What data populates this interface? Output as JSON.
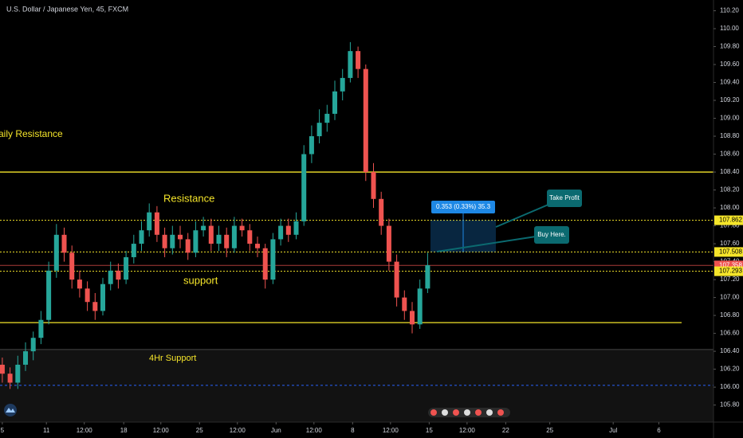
{
  "chart_data": {
    "type": "candlestick",
    "title": "U.S. Dollar / Japanese Yen, 45, FXCM",
    "up_color": "#26a69a",
    "down_color": "#ef5350",
    "x": [
      0,
      1,
      2,
      3,
      4,
      5,
      6,
      7,
      8,
      9,
      10,
      11,
      12,
      13,
      14,
      15,
      16,
      17,
      18,
      19,
      20,
      21,
      22,
      23,
      24,
      25,
      26,
      27,
      28,
      29,
      30,
      31,
      32,
      33,
      34,
      35,
      36,
      37,
      38,
      39,
      40,
      41,
      42,
      43,
      44,
      45,
      46,
      47,
      48,
      49,
      50,
      51,
      52,
      53,
      54,
      55
    ],
    "open": [
      106.25,
      106.15,
      106.05,
      106.25,
      106.4,
      106.55,
      106.75,
      107.3,
      107.7,
      107.5,
      107.2,
      107.1,
      106.95,
      106.85,
      107.15,
      107.3,
      107.2,
      107.45,
      107.6,
      107.75,
      107.95,
      107.7,
      107.55,
      107.7,
      107.65,
      107.5,
      107.75,
      107.8,
      107.6,
      107.7,
      107.55,
      107.8,
      107.75,
      107.6,
      107.55,
      107.2,
      107.65,
      107.8,
      107.7,
      107.85,
      108.6,
      108.8,
      108.95,
      109.05,
      109.3,
      109.45,
      109.75,
      109.55,
      108.4,
      108.1,
      107.8,
      107.4,
      107.0,
      106.85,
      106.7,
      107.1
    ],
    "high": [
      106.33,
      106.22,
      106.35,
      106.5,
      106.62,
      106.85,
      107.4,
      107.82,
      107.78,
      107.58,
      107.3,
      107.18,
      107.05,
      107.22,
      107.4,
      107.38,
      107.52,
      107.7,
      107.85,
      108.05,
      108.02,
      107.78,
      107.8,
      107.8,
      107.72,
      107.85,
      107.9,
      107.88,
      107.8,
      107.78,
      107.9,
      107.88,
      107.82,
      107.68,
      107.6,
      107.72,
      107.88,
      107.88,
      107.95,
      108.7,
      108.92,
      109.1,
      109.15,
      109.42,
      109.55,
      109.85,
      109.8,
      109.6,
      108.5,
      108.18,
      107.88,
      107.48,
      107.08,
      106.95,
      107.2,
      107.5
    ],
    "low": [
      106.05,
      105.98,
      105.98,
      106.18,
      106.3,
      106.48,
      106.7,
      107.22,
      107.4,
      107.1,
      107.0,
      106.85,
      106.75,
      106.8,
      107.08,
      107.1,
      107.15,
      107.38,
      107.52,
      107.68,
      107.62,
      107.45,
      107.48,
      107.55,
      107.42,
      107.45,
      107.68,
      107.52,
      107.52,
      107.45,
      107.5,
      107.68,
      107.52,
      107.45,
      107.1,
      107.15,
      107.58,
      107.62,
      107.65,
      107.8,
      108.5,
      108.72,
      108.85,
      108.98,
      109.2,
      109.4,
      109.45,
      108.3,
      108.0,
      107.7,
      107.3,
      106.9,
      106.75,
      106.6,
      106.65,
      107.05
    ],
    "close": [
      106.15,
      106.05,
      106.25,
      106.4,
      106.55,
      106.75,
      107.3,
      107.7,
      107.5,
      107.2,
      107.1,
      106.95,
      106.85,
      107.15,
      107.3,
      107.2,
      107.45,
      107.6,
      107.75,
      107.95,
      107.7,
      107.55,
      107.7,
      107.65,
      107.5,
      107.75,
      107.8,
      107.6,
      107.7,
      107.55,
      107.8,
      107.75,
      107.6,
      107.55,
      107.2,
      107.65,
      107.8,
      107.7,
      107.85,
      108.6,
      108.8,
      108.95,
      109.05,
      109.3,
      109.45,
      109.75,
      109.55,
      108.4,
      108.1,
      107.8,
      107.4,
      107.0,
      106.85,
      106.7,
      107.1,
      107.36
    ],
    "xlim": [
      -0.3,
      91.97
    ],
    "xticks": [
      {
        "value": 0.0,
        "label": "5"
      },
      {
        "value": 5.7,
        "label": "11"
      },
      {
        "value": 10.6,
        "label": "12:00"
      },
      {
        "value": 15.7,
        "label": "18"
      },
      {
        "value": 20.5,
        "label": "12:00"
      },
      {
        "value": 25.5,
        "label": "25"
      },
      {
        "value": 30.4,
        "label": "12:00"
      },
      {
        "value": 35.4,
        "label": "Jun"
      },
      {
        "value": 40.3,
        "label": "12:00"
      },
      {
        "value": 45.3,
        "label": "8"
      },
      {
        "value": 50.2,
        "label": "12:00"
      },
      {
        "value": 55.2,
        "label": "15"
      },
      {
        "value": 60.1,
        "label": "12:00"
      },
      {
        "value": 65.1,
        "label": "22"
      },
      {
        "value": 70.8,
        "label": "25"
      },
      {
        "value": 79.0,
        "label": "Jul"
      },
      {
        "value": 84.9,
        "label": "6"
      }
    ],
    "ylim": [
      105.61,
      110.32
    ],
    "yticks": [
      {
        "value": 105.8,
        "label": "105.80"
      },
      {
        "value": 106.0,
        "label": "106.00"
      },
      {
        "value": 106.2,
        "label": "106.20"
      },
      {
        "value": 106.4,
        "label": "106.40"
      },
      {
        "value": 106.6,
        "label": "106.60"
      },
      {
        "value": 106.8,
        "label": "106.80"
      },
      {
        "value": 107.0,
        "label": "107.00"
      },
      {
        "value": 107.2,
        "label": "107.20"
      },
      {
        "value": 107.4,
        "label": "107.40"
      },
      {
        "value": 107.6,
        "label": "107.60"
      },
      {
        "value": 107.8,
        "label": "107.80"
      },
      {
        "value": 108.0,
        "label": "108.00"
      },
      {
        "value": 108.2,
        "label": "108.20"
      },
      {
        "value": 108.4,
        "label": "108.40"
      },
      {
        "value": 108.6,
        "label": "108.60"
      },
      {
        "value": 108.8,
        "label": "108.80"
      },
      {
        "value": 109.0,
        "label": "109.00"
      },
      {
        "value": 109.2,
        "label": "109.20"
      },
      {
        "value": 109.4,
        "label": "109.40"
      },
      {
        "value": 109.6,
        "label": "109.60"
      },
      {
        "value": 109.8,
        "label": "109.80"
      },
      {
        "value": 110.0,
        "label": "110.00"
      },
      {
        "value": 110.2,
        "label": "110.20"
      }
    ],
    "lines": [
      {
        "value": 108.4,
        "color": "#f5e52a",
        "style": "solid"
      },
      {
        "value": 106.72,
        "color": "#f5e52a",
        "style": "solid"
      },
      {
        "value": 106.42,
        "color": "#3a3a3a",
        "style": "solid"
      },
      {
        "value": 106.02,
        "color": "#2962ff",
        "style": "dashed"
      }
    ],
    "price_levels": [
      {
        "value": 107.862,
        "color": "#f5e52a"
      },
      {
        "value": 107.508,
        "color": "#f5e52a"
      },
      {
        "value": 107.358,
        "color": "#ef5350"
      },
      {
        "value": 107.293,
        "color": "#f5e52a"
      }
    ],
    "annotations": {
      "daily_resistance": "aily Resistance",
      "resistance": "Resistance",
      "support": "support",
      "support_4hr": "4Hr Support",
      "range": "0.353 (0.33%) 35.3",
      "take_profit": "Take Profit",
      "buy_here": "Buy Here."
    }
  }
}
